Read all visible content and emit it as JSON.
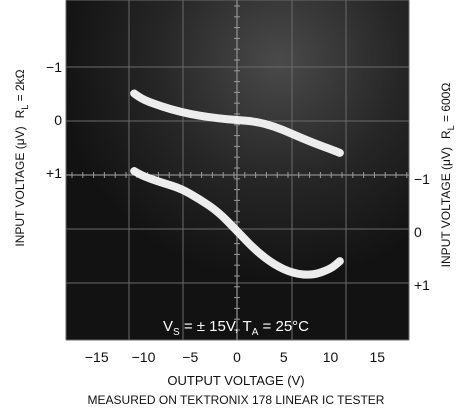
{
  "chart_data": {
    "type": "line",
    "x_axis": {
      "label": "OUTPUT VOLTAGE (V)",
      "range": [
        -15,
        15
      ],
      "ticks": [
        -15,
        -10,
        -5,
        0,
        5,
        10,
        15
      ],
      "tick_labels": [
        "−15",
        "−10",
        "−5",
        "0",
        "5",
        "10",
        "15"
      ]
    },
    "y_axes": [
      {
        "side": "left",
        "label_main": "INPUT VOLTAGE (μV)",
        "label_load": "R",
        "label_load_sub": "L",
        "label_load_value": " = 2kΩ",
        "range": [
          1,
          -1
        ],
        "ticks": [
          -1,
          0,
          1
        ],
        "tick_labels": [
          "−1",
          "0",
          "+1"
        ]
      },
      {
        "side": "right",
        "label_main": "INPUT VOLTAGE (μV)",
        "label_load": "R",
        "label_load_sub": "L",
        "label_load_value": " = 600Ω",
        "range": [
          1,
          -1
        ],
        "ticks": [
          -1,
          0,
          1
        ],
        "tick_labels": [
          "−1",
          "0",
          "+1"
        ]
      }
    ],
    "series": [
      {
        "axis": "left",
        "x": [
          -11,
          -10,
          -8,
          -6,
          -4,
          -2,
          0,
          2,
          4,
          6,
          8,
          10,
          11
        ],
        "y": [
          -0.5,
          -0.38,
          -0.25,
          -0.15,
          -0.08,
          -0.03,
          0.0,
          0.03,
          0.12,
          0.27,
          0.42,
          0.55,
          0.62
        ]
      },
      {
        "axis": "right",
        "x": [
          -11,
          -10,
          -8,
          -6,
          -4,
          -2,
          0,
          2,
          4,
          6,
          8,
          10,
          11
        ],
        "y": [
          -1.15,
          -1.05,
          -0.93,
          -0.82,
          -0.62,
          -0.38,
          -0.02,
          0.35,
          0.62,
          0.78,
          0.82,
          0.7,
          0.55
        ]
      }
    ],
    "annotation": {
      "v": "V",
      "v_sub": "S",
      "v_rest": " = ± 15V, T",
      "t_sub": "A",
      "t_rest": " = 25°C"
    },
    "caption": "MEASURED ON TEKTRONIX 178 LINEAR IC TESTER",
    "grid": true,
    "colors": {
      "screen": "#151515",
      "grid": "#6a6a6a",
      "trace": "#f4f4f4"
    }
  }
}
